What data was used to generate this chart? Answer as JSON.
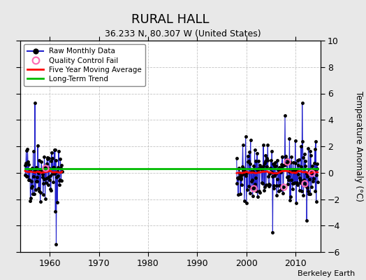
{
  "title": "RURAL HALL",
  "subtitle": "36.233 N, 80.307 W (United States)",
  "ylabel_right": "Temperature Anomaly (°C)",
  "credit": "Berkeley Earth",
  "ylim": [
    -6,
    10
  ],
  "xlim": [
    1954,
    2015
  ],
  "xticks": [
    1960,
    1970,
    1980,
    1990,
    2000,
    2010
  ],
  "yticks": [
    -6,
    -4,
    -2,
    0,
    2,
    4,
    6,
    8,
    10
  ],
  "background_color": "#e8e8e8",
  "plot_bg_color": "#ffffff",
  "grid_color": "#aaaaaa",
  "raw_line_color": "#2222cc",
  "raw_dot_color": "#000000",
  "qc_fail_color": "#ff69b4",
  "moving_avg_color": "#ff0000",
  "trend_color": "#00bb00",
  "trend_y": 0.3,
  "seed": 42,
  "segment1_start": 1955.0,
  "segment1_end": 1962.5,
  "segment2_start": 1998.0,
  "segment2_end": 2014.5,
  "noise_scale": 1.4
}
